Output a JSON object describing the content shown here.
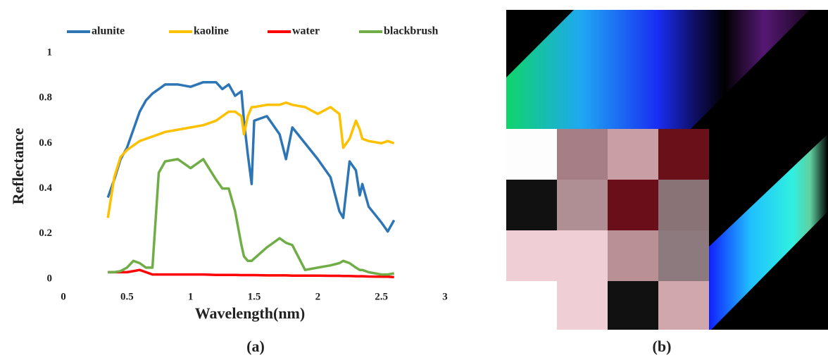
{
  "chart_data": {
    "type": "line",
    "y_label": "Reflectance",
    "x_label": "Wavelength(nm)",
    "x": [
      0.35,
      0.4,
      0.45,
      0.5,
      0.55,
      0.6,
      0.65,
      0.7,
      0.75,
      0.8,
      0.9,
      1.0,
      1.1,
      1.2,
      1.25,
      1.3,
      1.35,
      1.4,
      1.42,
      1.45,
      1.48,
      1.5,
      1.6,
      1.7,
      1.75,
      1.8,
      1.9,
      2.0,
      2.1,
      2.17,
      2.2,
      2.25,
      2.3,
      2.33,
      2.35,
      2.4,
      2.5,
      2.55,
      2.6
    ],
    "series": [
      {
        "name": "alunite",
        "color": "#2e75b6",
        "values": [
          0.36,
          0.44,
          0.53,
          0.58,
          0.66,
          0.74,
          0.79,
          0.82,
          0.84,
          0.86,
          0.86,
          0.85,
          0.87,
          0.87,
          0.84,
          0.86,
          0.81,
          0.83,
          0.7,
          0.55,
          0.42,
          0.7,
          0.72,
          0.64,
          0.53,
          0.67,
          0.6,
          0.53,
          0.45,
          0.3,
          0.27,
          0.52,
          0.48,
          0.37,
          0.42,
          0.32,
          0.25,
          0.21,
          0.26
        ]
      },
      {
        "name": "kaoline",
        "color": "#ffc000",
        "values": [
          0.27,
          0.45,
          0.54,
          0.57,
          0.59,
          0.61,
          0.62,
          0.63,
          0.64,
          0.65,
          0.66,
          0.67,
          0.68,
          0.7,
          0.72,
          0.74,
          0.74,
          0.72,
          0.64,
          0.72,
          0.76,
          0.76,
          0.77,
          0.77,
          0.78,
          0.77,
          0.76,
          0.73,
          0.76,
          0.73,
          0.58,
          0.62,
          0.7,
          0.66,
          0.62,
          0.61,
          0.6,
          0.61,
          0.6
        ]
      },
      {
        "name": "water",
        "color": "#ff0000",
        "values": [
          0.03,
          0.03,
          0.03,
          0.03,
          0.035,
          0.04,
          0.03,
          0.02,
          0.02,
          0.02,
          0.02,
          0.02,
          0.02,
          0.018,
          0.018,
          0.018,
          0.018,
          0.017,
          0.017,
          0.017,
          0.017,
          0.017,
          0.016,
          0.016,
          0.016,
          0.015,
          0.015,
          0.015,
          0.014,
          0.014,
          0.013,
          0.013,
          0.012,
          0.012,
          0.012,
          0.011,
          0.01,
          0.01,
          0.008
        ]
      },
      {
        "name": "blackbrush",
        "color": "#70ad47",
        "values": [
          0.03,
          0.03,
          0.035,
          0.05,
          0.08,
          0.07,
          0.05,
          0.05,
          0.47,
          0.52,
          0.53,
          0.49,
          0.53,
          0.44,
          0.4,
          0.4,
          0.3,
          0.15,
          0.1,
          0.08,
          0.08,
          0.09,
          0.14,
          0.18,
          0.16,
          0.15,
          0.04,
          0.05,
          0.06,
          0.07,
          0.08,
          0.07,
          0.05,
          0.04,
          0.04,
          0.03,
          0.02,
          0.02,
          0.025
        ]
      }
    ],
    "xlim": [
      0,
      3
    ],
    "xticks": [
      0,
      0.5,
      1,
      1.5,
      2,
      2.5,
      3
    ],
    "ylim": [
      0,
      1
    ],
    "yticks": [
      0,
      0.2,
      0.4,
      0.6,
      0.8,
      1
    ],
    "grid": false,
    "legend": "top"
  },
  "captions": [
    "(a)",
    "(b)"
  ]
}
